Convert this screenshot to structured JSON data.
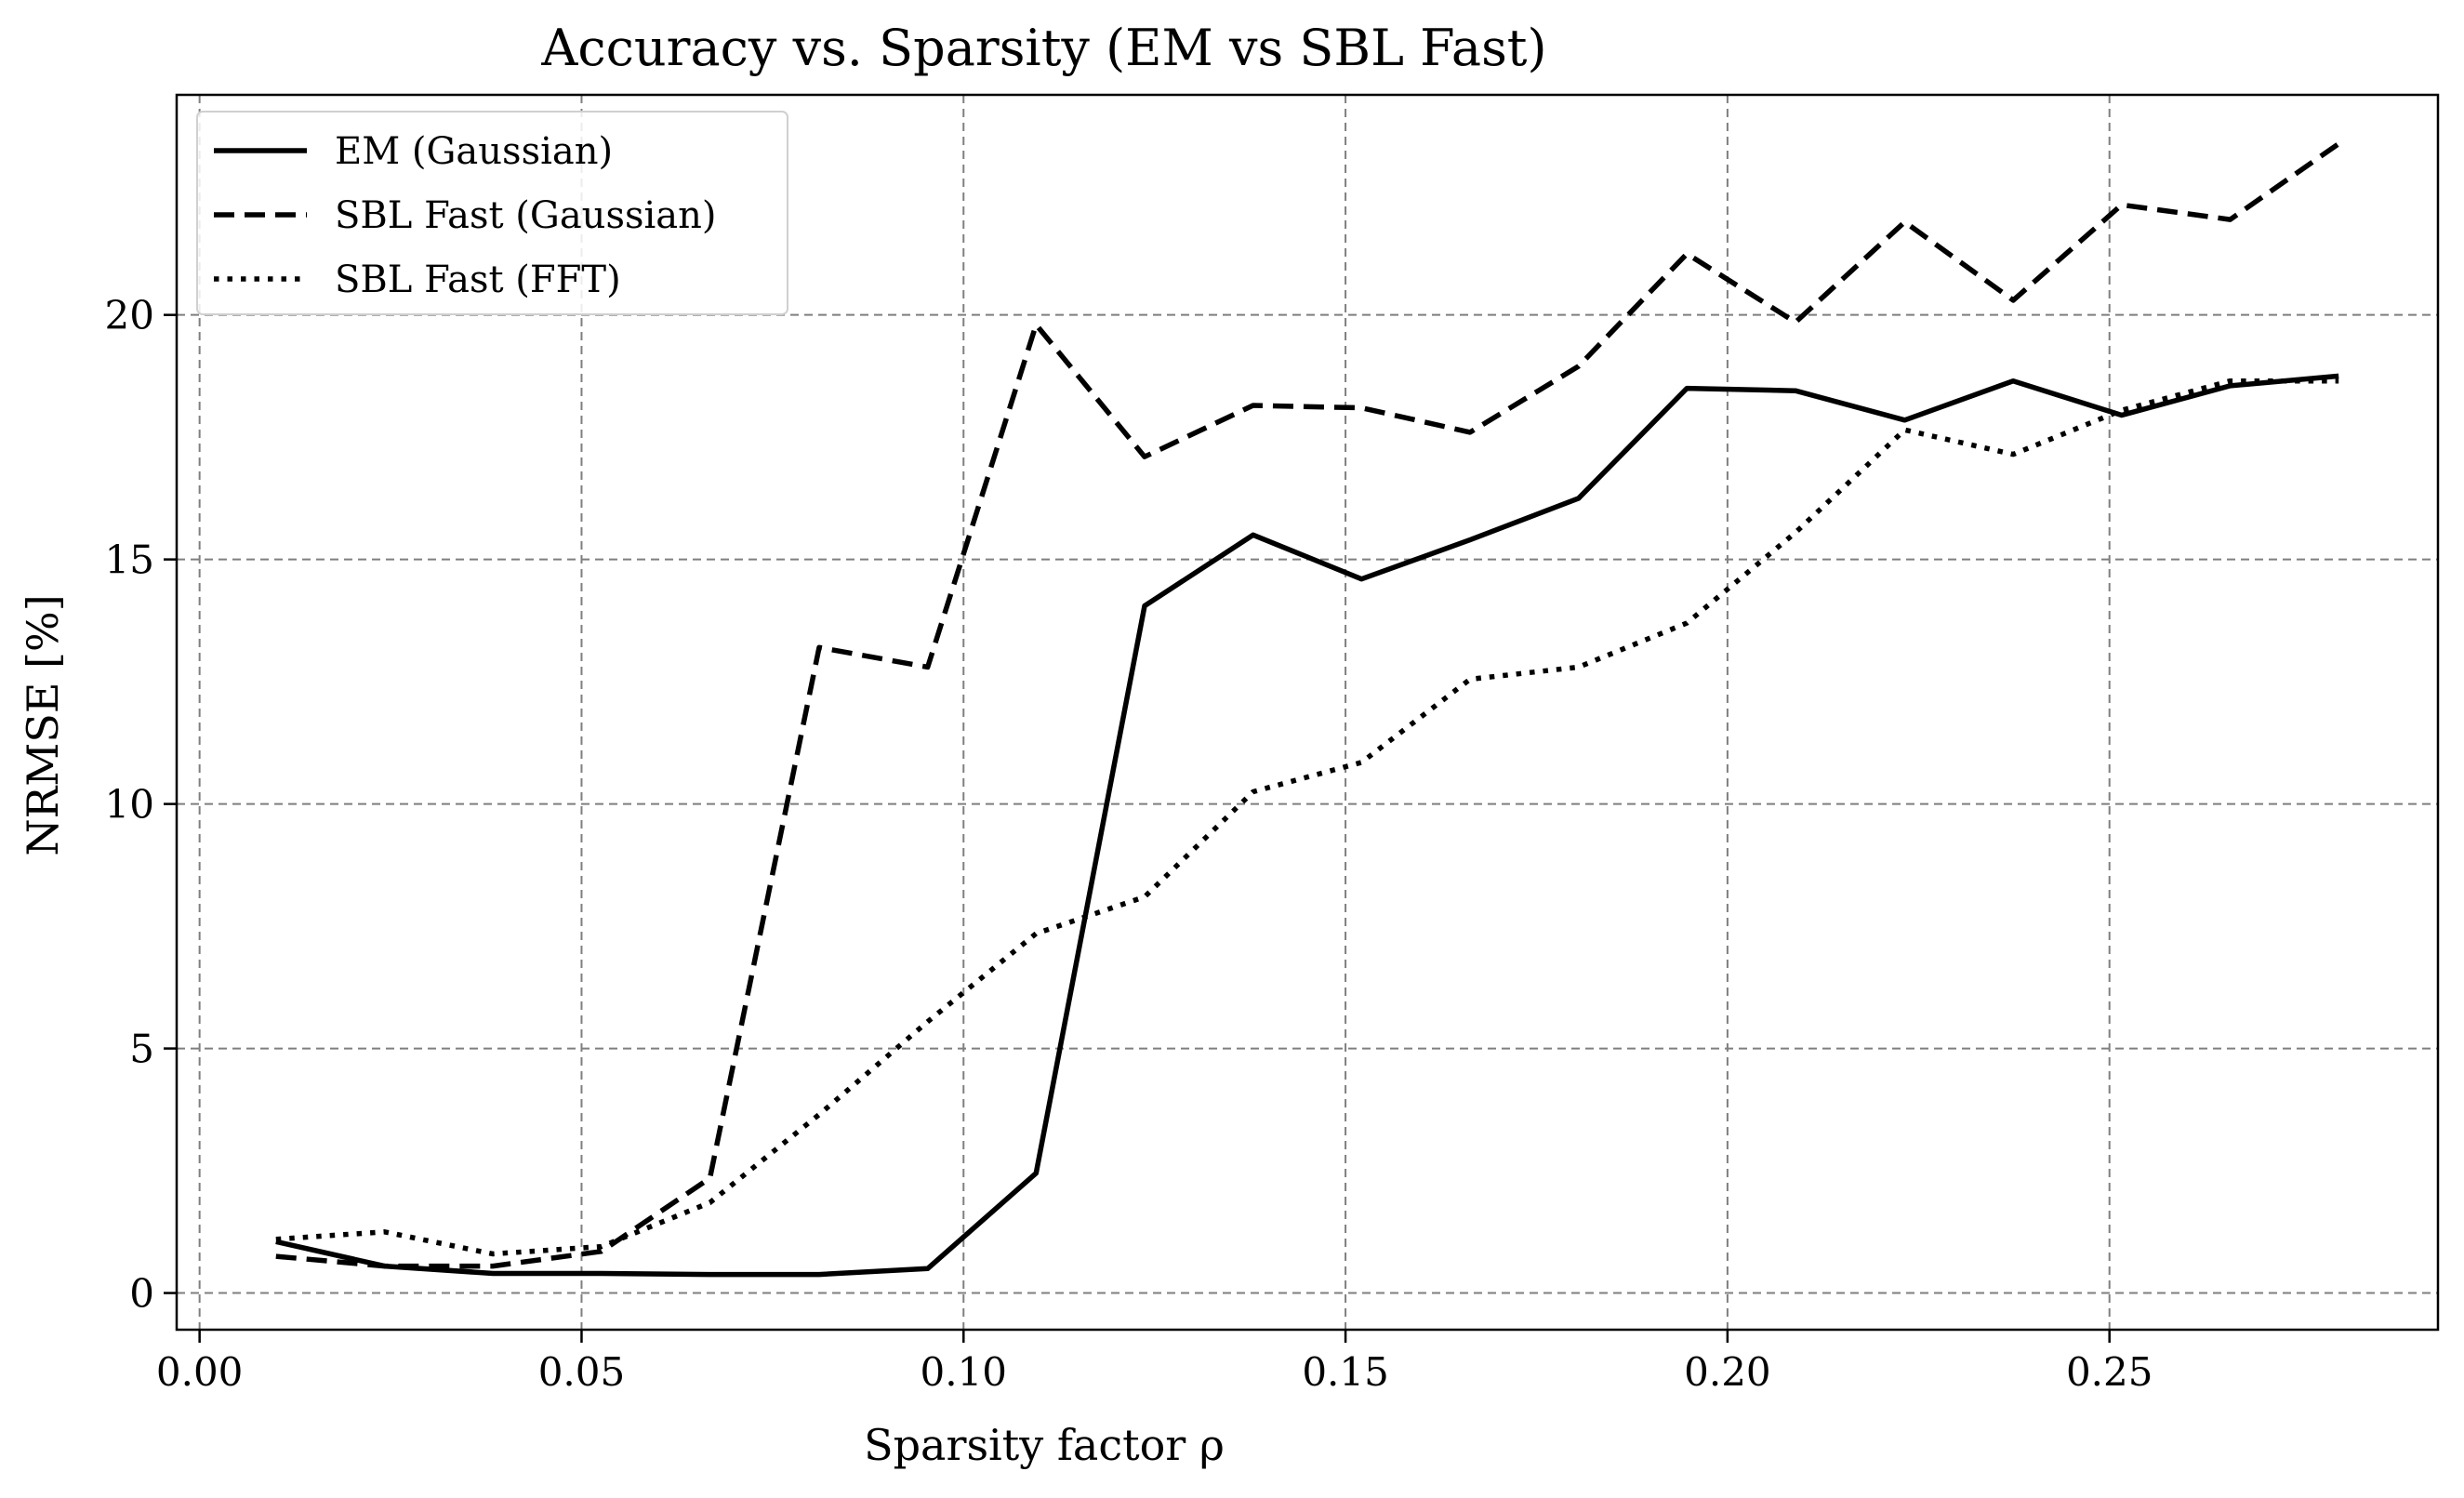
{
  "chart_data": {
    "type": "line",
    "title": "Accuracy vs. Sparsity (EM vs SBL Fast)",
    "xlabel": "Sparsity factor ρ",
    "ylabel": "NRMSE [%]",
    "xlim": [
      -0.003,
      0.293
    ],
    "ylim": [
      -0.75,
      24.5
    ],
    "xticks": [
      0.0,
      0.05,
      0.1,
      0.15,
      0.2,
      0.25
    ],
    "xtick_labels": [
      "0.00",
      "0.05",
      "0.10",
      "0.15",
      "0.20",
      "0.25"
    ],
    "yticks": [
      0,
      5,
      10,
      15,
      20
    ],
    "ytick_labels": [
      "0",
      "5",
      "10",
      "15",
      "20"
    ],
    "grid": true,
    "legend_position": "upper-left",
    "x": [
      0.01,
      0.0242,
      0.0384,
      0.0526,
      0.0668,
      0.0811,
      0.0953,
      0.1095,
      0.1237,
      0.1379,
      0.1521,
      0.1663,
      0.1805,
      0.1947,
      0.2089,
      0.2232,
      0.2374,
      0.2516,
      0.2658,
      0.28
    ],
    "series": [
      {
        "name": "EM (Gaussian)",
        "style": "solid",
        "color": "#000000",
        "values": [
          1.05,
          0.55,
          0.4,
          0.4,
          0.38,
          0.38,
          0.5,
          2.45,
          14.05,
          15.5,
          14.6,
          15.4,
          16.25,
          18.5,
          18.45,
          17.85,
          18.65,
          17.95,
          18.55,
          18.75
        ]
      },
      {
        "name": "SBL Fast (Gaussian)",
        "style": "dashed",
        "color": "#000000",
        "values": [
          0.75,
          0.55,
          0.55,
          0.85,
          2.35,
          13.2,
          12.8,
          19.8,
          17.1,
          18.15,
          18.1,
          17.6,
          18.95,
          21.25,
          19.85,
          21.9,
          20.3,
          22.25,
          21.95,
          23.5
        ]
      },
      {
        "name": "SBL Fast (FFT)",
        "style": "dotted",
        "color": "#000000",
        "values": [
          1.1,
          1.25,
          0.8,
          0.95,
          1.85,
          3.65,
          5.55,
          7.35,
          8.1,
          10.25,
          10.85,
          12.55,
          12.8,
          13.7,
          15.55,
          17.65,
          17.15,
          18.05,
          18.65,
          18.65
        ]
      }
    ]
  }
}
